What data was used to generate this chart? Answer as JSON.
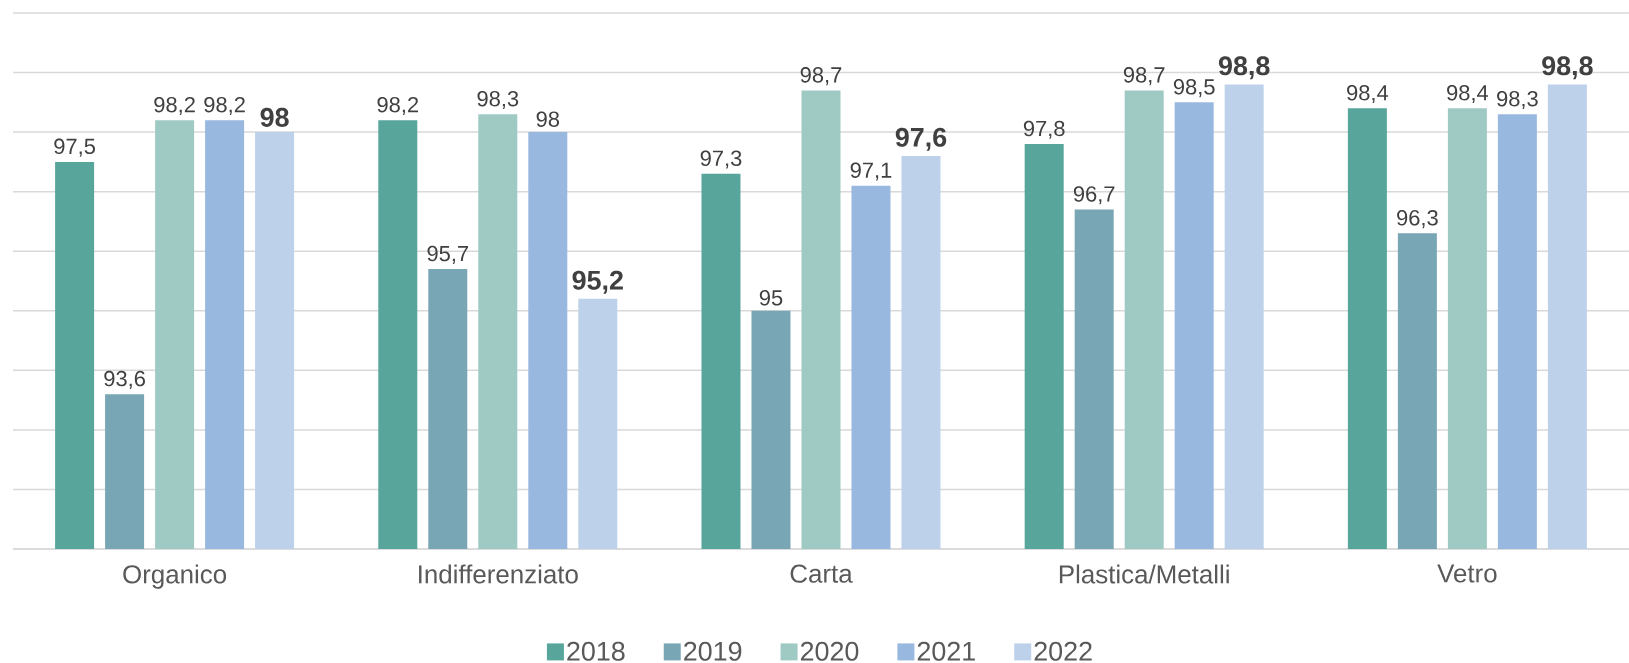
{
  "chart_data": {
    "type": "bar",
    "categories": [
      "Organico",
      "Indifferenziato",
      "Carta",
      "Plastica/Metalli",
      "Vetro"
    ],
    "series": [
      {
        "name": "2018",
        "color": "#58a59b",
        "values": [
          97.5,
          98.2,
          97.3,
          97.8,
          98.4
        ],
        "value_labels": [
          "97,5",
          "98,2",
          "97,3",
          "97,8",
          "98,4"
        ]
      },
      {
        "name": "2019",
        "color": "#78a6b5",
        "values": [
          93.6,
          95.7,
          95,
          96.7,
          96.3
        ],
        "value_labels": [
          "93,6",
          "95,7",
          "95",
          "96,7",
          "96,3"
        ]
      },
      {
        "name": "2020",
        "color": "#9fcac4",
        "values": [
          98.2,
          98.3,
          98.7,
          98.7,
          98.4
        ],
        "value_labels": [
          "98,2",
          "98,3",
          "98,7",
          "98,7",
          "98,4"
        ]
      },
      {
        "name": "2021",
        "color": "#98b8df",
        "values": [
          98.2,
          98,
          97.1,
          98.5,
          98.3
        ],
        "value_labels": [
          "98,2",
          "98",
          "97,1",
          "98,5",
          "98,3"
        ]
      },
      {
        "name": "2022",
        "color": "#bdd1ea",
        "values": [
          98,
          95.2,
          97.6,
          98.8,
          98.8
        ],
        "value_labels": [
          "98",
          "95,2",
          "97,6",
          "98,8",
          "98,8"
        ]
      }
    ],
    "ylim": [
      91,
      100
    ],
    "yticks": [
      {
        "value": 91,
        "label": null
      },
      {
        "value": 92,
        "label": null
      },
      {
        "value": 93,
        "label": null
      },
      {
        "value": 94,
        "label": null
      },
      {
        "value": 95,
        "label": null
      },
      {
        "value": 96,
        "label": null
      },
      {
        "value": 97,
        "label": null
      },
      {
        "value": 98,
        "label": null
      },
      {
        "value": 99,
        "label": null
      },
      {
        "value": 100,
        "label": null
      }
    ],
    "tick_labels": "x",
    "grid": "y",
    "legend": "bottom"
  }
}
